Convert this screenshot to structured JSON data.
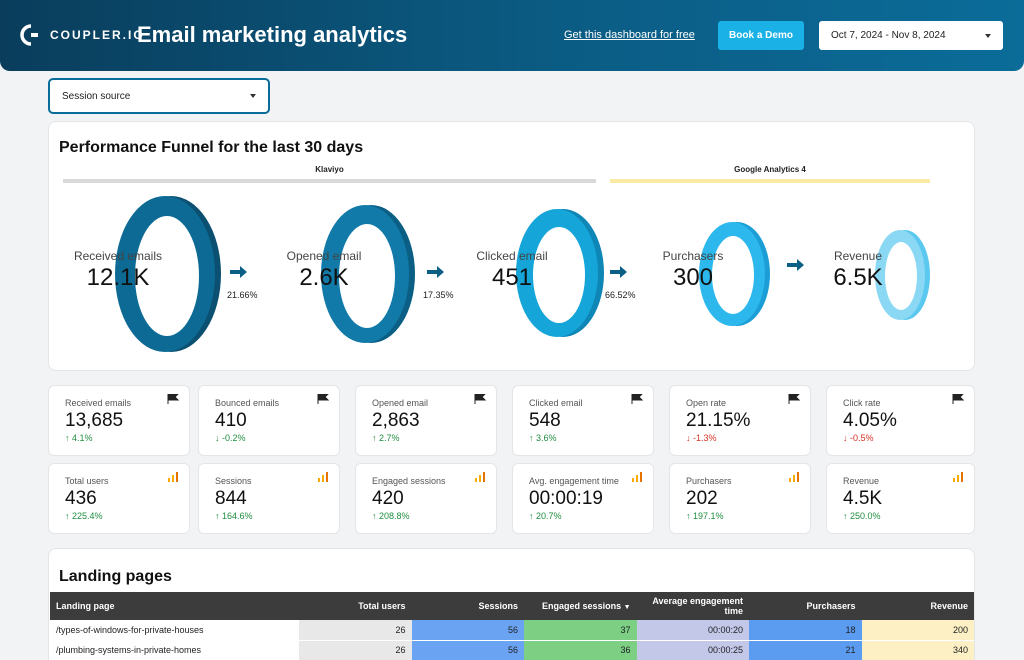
{
  "header": {
    "logo_text": "COUPLER.IO",
    "title": "Email marketing analytics",
    "link_label": "Get this dashboard for free",
    "demo_button": "Book a Demo",
    "date_range": "Oct 7, 2024 - Nov 8, 2024"
  },
  "filters": {
    "session_source": "Session source"
  },
  "funnel": {
    "title": "Performance Funnel for the last 30 days",
    "sources": [
      "Klaviyo",
      "Google Analytics 4"
    ],
    "stages": [
      {
        "label": "Received emails",
        "value": "12.1K"
      },
      {
        "label": "Opened email",
        "value": "2.6K"
      },
      {
        "label": "Clicked email",
        "value": "451"
      },
      {
        "label": "Purchasers",
        "value": "300"
      },
      {
        "label": "Revenue",
        "value": "6.5K"
      }
    ],
    "conversions": [
      "21.66%",
      "17.35%",
      "66.52%"
    ]
  },
  "kpis": [
    {
      "label": "Received emails",
      "value": "13,685",
      "delta": "4.1%",
      "dir": "up",
      "icon": "flag-icon"
    },
    {
      "label": "Bounced emails",
      "value": "410",
      "delta": "-0.2%",
      "dir": "down-green",
      "icon": "flag-icon"
    },
    {
      "label": "Opened email",
      "value": "2,863",
      "delta": "2.7%",
      "dir": "up",
      "icon": "flag-icon"
    },
    {
      "label": "Clicked email",
      "value": "548",
      "delta": "3.6%",
      "dir": "up",
      "icon": "flag-icon"
    },
    {
      "label": "Open rate",
      "value": "21.15%",
      "delta": "-1.3%",
      "dir": "down",
      "icon": "flag-icon"
    },
    {
      "label": "Click rate",
      "value": "4.05%",
      "delta": "-0.5%",
      "dir": "down",
      "icon": "flag-icon"
    },
    {
      "label": "Total users",
      "value": "436",
      "delta": "225.4%",
      "dir": "up",
      "icon": "analytics-icon"
    },
    {
      "label": "Sessions",
      "value": "844",
      "delta": "164.6%",
      "dir": "up",
      "icon": "analytics-icon"
    },
    {
      "label": "Engaged sessions",
      "value": "420",
      "delta": "208.8%",
      "dir": "up",
      "icon": "analytics-icon"
    },
    {
      "label": "Avg. engagement time",
      "value": "00:00:19",
      "delta": "20.7%",
      "dir": "up",
      "icon": "analytics-icon"
    },
    {
      "label": "Purchasers",
      "value": "202",
      "delta": "197.1%",
      "dir": "up",
      "icon": "analytics-icon"
    },
    {
      "label": "Revenue",
      "value": "4.5K",
      "delta": "250.0%",
      "dir": "up",
      "icon": "analytics-icon"
    }
  ],
  "landing": {
    "title": "Landing pages",
    "columns": [
      "Landing page",
      "Total users",
      "Sessions",
      "Engaged sessions",
      "Average engagement time",
      "Purchasers",
      "Revenue"
    ],
    "sort_indicator": "▼",
    "rows": [
      [
        "/types-of-windows-for-private-houses",
        "26",
        "56",
        "37",
        "00:00:20",
        "18",
        "200"
      ],
      [
        "/plumbing-systems-in-private-homes",
        "26",
        "56",
        "36",
        "00:00:25",
        "21",
        "340"
      ]
    ]
  },
  "colors": {
    "header_dark": "#0a3d5c",
    "accent": "#1ab1e6",
    "klaviyo_bar": "#d9d9d9",
    "ga4_bar": "#fbe9a6",
    "positive": "#1e8e3e",
    "negative": "#d93025"
  }
}
